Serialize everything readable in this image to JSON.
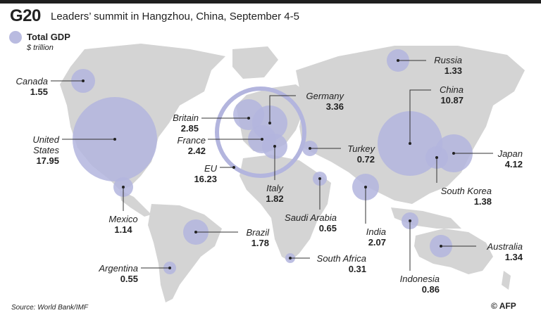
{
  "header": {
    "title": "G20",
    "subtitle": "Leaders’ summit in Hangzhou, China, September 4-5"
  },
  "legend": {
    "label": "Total GDP",
    "unit": "$ trillion",
    "color": "#b3b5de"
  },
  "countries": [
    {
      "key": "canada",
      "name": "Canada",
      "value": "1.55"
    },
    {
      "key": "united_states",
      "name": "United States",
      "name_line1": "United",
      "name_line2": "States",
      "value": "17.95"
    },
    {
      "key": "mexico",
      "name": "Mexico",
      "value": "1.14"
    },
    {
      "key": "brazil",
      "name": "Brazil",
      "value": "1.78"
    },
    {
      "key": "argentina",
      "name": "Argentina",
      "value": "0.55"
    },
    {
      "key": "britain",
      "name": "Britain",
      "value": "2.85"
    },
    {
      "key": "france",
      "name": "France",
      "value": "2.42"
    },
    {
      "key": "eu",
      "name": "EU",
      "value": "16.23"
    },
    {
      "key": "germany",
      "name": "Germany",
      "value": "3.36"
    },
    {
      "key": "italy",
      "name": "Italy",
      "value": "1.82"
    },
    {
      "key": "russia",
      "name": "Russia",
      "value": "1.33"
    },
    {
      "key": "turkey",
      "name": "Turkey",
      "value": "0.72"
    },
    {
      "key": "saudi_arabia",
      "name": "Saudi Arabia",
      "value": "0.65"
    },
    {
      "key": "south_africa",
      "name": "South Africa",
      "value": "0.31"
    },
    {
      "key": "india",
      "name": "India",
      "value": "2.07"
    },
    {
      "key": "china",
      "name": "China",
      "value": "10.87"
    },
    {
      "key": "japan",
      "name": "Japan",
      "value": "4.12"
    },
    {
      "key": "south_korea",
      "name": "South Korea",
      "value": "1.38"
    },
    {
      "key": "indonesia",
      "name": "Indonesia",
      "value": "0.86"
    },
    {
      "key": "australia",
      "name": "Australia",
      "value": "1.34"
    }
  ],
  "footer": {
    "source": "Source: World Bank/IMF",
    "credit": "© AFP"
  }
}
